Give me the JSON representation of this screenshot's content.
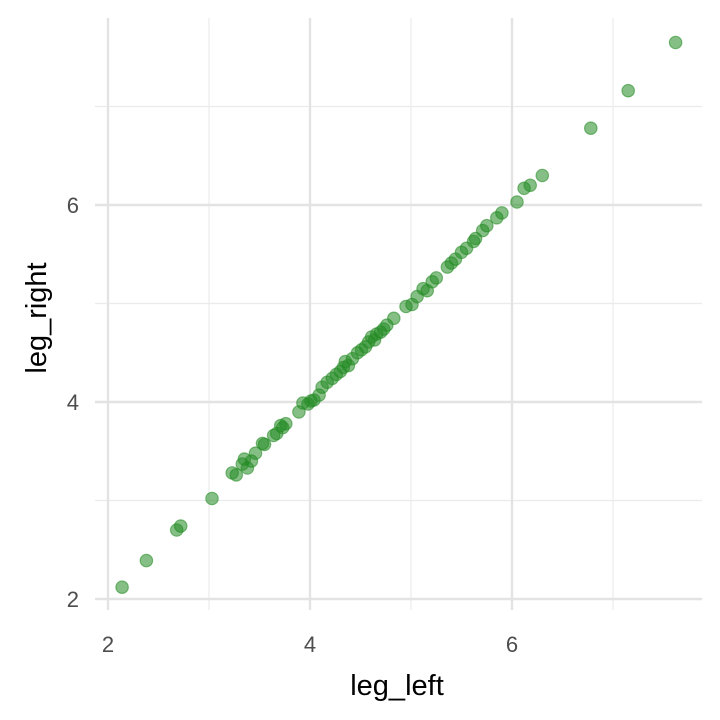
{
  "chart_data": {
    "type": "scatter",
    "title": "",
    "xlabel": "leg_left",
    "ylabel": "leg_right",
    "xlim": [
      2.0,
      7.9
    ],
    "ylim": [
      2.0,
      7.9
    ],
    "x_ticks": [
      2,
      4,
      6
    ],
    "y_ticks": [
      2,
      4,
      6
    ],
    "x_minor_ticks": [
      3,
      5,
      7
    ],
    "y_minor_ticks": [
      3,
      5,
      7
    ],
    "grid": true,
    "point_color": "#228B22",
    "point_opacity": 0.55,
    "points": [
      [
        2.14,
        2.12
      ],
      [
        2.38,
        2.39
      ],
      [
        2.68,
        2.7
      ],
      [
        2.72,
        2.74
      ],
      [
        3.03,
        3.02
      ],
      [
        3.23,
        3.28
      ],
      [
        3.27,
        3.26
      ],
      [
        3.33,
        3.37
      ],
      [
        3.35,
        3.42
      ],
      [
        3.38,
        3.33
      ],
      [
        3.42,
        3.4
      ],
      [
        3.46,
        3.48
      ],
      [
        3.53,
        3.58
      ],
      [
        3.55,
        3.57
      ],
      [
        3.64,
        3.66
      ],
      [
        3.67,
        3.68
      ],
      [
        3.71,
        3.76
      ],
      [
        3.73,
        3.74
      ],
      [
        3.76,
        3.78
      ],
      [
        3.89,
        3.9
      ],
      [
        3.93,
        3.99
      ],
      [
        3.98,
        3.98
      ],
      [
        4.01,
        4.01
      ],
      [
        4.04,
        4.02
      ],
      [
        4.09,
        4.07
      ],
      [
        4.12,
        4.15
      ],
      [
        4.17,
        4.2
      ],
      [
        4.22,
        4.24
      ],
      [
        4.26,
        4.28
      ],
      [
        4.3,
        4.31
      ],
      [
        4.33,
        4.35
      ],
      [
        4.35,
        4.41
      ],
      [
        4.38,
        4.37
      ],
      [
        4.42,
        4.44
      ],
      [
        4.47,
        4.5
      ],
      [
        4.51,
        4.53
      ],
      [
        4.55,
        4.56
      ],
      [
        4.58,
        4.61
      ],
      [
        4.61,
        4.66
      ],
      [
        4.64,
        4.63
      ],
      [
        4.66,
        4.69
      ],
      [
        4.7,
        4.71
      ],
      [
        4.73,
        4.74
      ],
      [
        4.76,
        4.78
      ],
      [
        4.83,
        4.85
      ],
      [
        4.95,
        4.97
      ],
      [
        5.01,
        4.99
      ],
      [
        5.06,
        5.07
      ],
      [
        5.12,
        5.15
      ],
      [
        5.16,
        5.13
      ],
      [
        5.21,
        5.22
      ],
      [
        5.25,
        5.26
      ],
      [
        5.36,
        5.37
      ],
      [
        5.4,
        5.41
      ],
      [
        5.44,
        5.45
      ],
      [
        5.5,
        5.52
      ],
      [
        5.55,
        5.56
      ],
      [
        5.62,
        5.63
      ],
      [
        5.64,
        5.66
      ],
      [
        5.71,
        5.74
      ],
      [
        5.75,
        5.79
      ],
      [
        5.85,
        5.87
      ],
      [
        5.9,
        5.92
      ],
      [
        6.05,
        6.03
      ],
      [
        6.12,
        6.17
      ],
      [
        6.18,
        6.2
      ],
      [
        6.3,
        6.3
      ],
      [
        6.78,
        6.78
      ],
      [
        7.15,
        7.16
      ],
      [
        7.62,
        7.65
      ]
    ]
  }
}
